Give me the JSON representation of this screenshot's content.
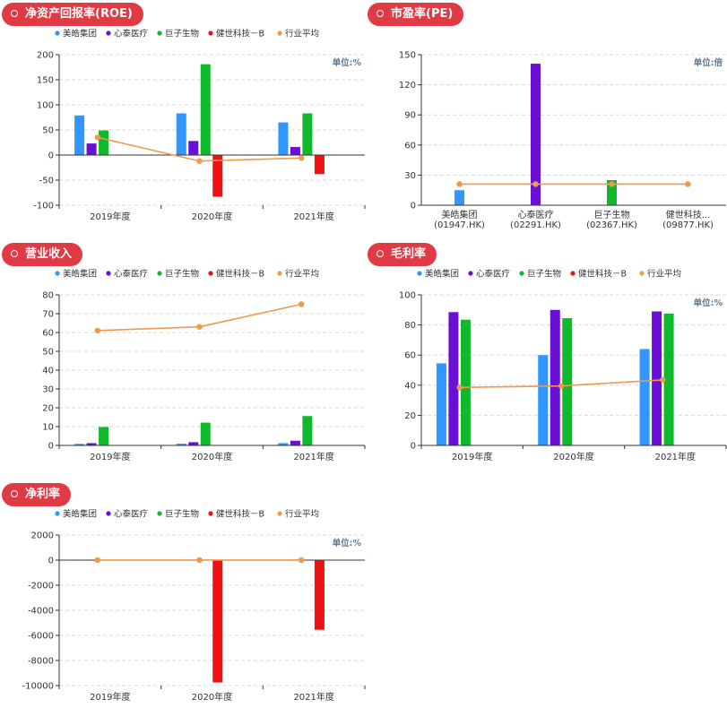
{
  "colors": {
    "title_bg": "#e03a45",
    "series": [
      "#2f97ff",
      "#6a0fd6",
      "#10b92c",
      "#ee1111",
      "#ee9a4d"
    ],
    "axis": "#333333",
    "grid": "#d9d9d9",
    "unit_text": "#5f7893"
  },
  "legend_labels": [
    "美皓集团",
    "心泰医疗",
    "巨子生物",
    "健世科技－B",
    "行业平均"
  ],
  "chart_data": [
    {
      "id": "roe",
      "title": "净资产回报率(ROE)",
      "unit": "单位:%",
      "type": "bar+line",
      "legend": true,
      "categories": [
        "2019年度",
        "2020年度",
        "2021年度"
      ],
      "ylim": [
        -100,
        200
      ],
      "yticks": [
        -100,
        -50,
        0,
        50,
        100,
        150,
        200
      ],
      "series": [
        {
          "name": "美皓集团",
          "type": "bar",
          "values": [
            79,
            83,
            65
          ]
        },
        {
          "name": "心泰医疗",
          "type": "bar",
          "values": [
            23,
            28,
            16
          ]
        },
        {
          "name": "巨子生物",
          "type": "bar",
          "values": [
            49,
            181,
            83
          ]
        },
        {
          "name": "健世科技－B",
          "type": "bar",
          "values": [
            null,
            -83,
            -38
          ]
        },
        {
          "name": "行业平均",
          "type": "line",
          "values": [
            35,
            -12,
            -6
          ]
        }
      ]
    },
    {
      "id": "pe",
      "title": "市盈率(PE)",
      "unit": "单位:倍",
      "type": "bar+line",
      "legend": false,
      "categories": [
        "美皓集团\n(01947.HK)",
        "心泰医疗\n(02291.HK)",
        "巨子生物\n(02367.HK)",
        "健世科技...\n(09877.HK)"
      ],
      "ylim": [
        0,
        150
      ],
      "yticks": [
        0,
        30,
        60,
        90,
        120,
        150
      ],
      "bar_values": [
        15,
        141,
        25,
        null
      ],
      "bar_colors": [
        "#2f97ff",
        "#6a0fd6",
        "#10b92c",
        "#ee1111"
      ],
      "line_values": [
        21,
        21,
        21,
        21
      ]
    },
    {
      "id": "revenue",
      "title": "营业收入",
      "unit": "",
      "type": "bar+line",
      "legend": true,
      "categories": [
        "2019年度",
        "2020年度",
        "2021年度"
      ],
      "ylim": [
        0,
        80
      ],
      "yticks": [
        0,
        10,
        20,
        30,
        40,
        50,
        60,
        70,
        80
      ],
      "series": [
        {
          "name": "美皓集团",
          "type": "bar",
          "values": [
            0.8,
            0.9,
            1.2
          ]
        },
        {
          "name": "心泰医疗",
          "type": "bar",
          "values": [
            1.2,
            1.7,
            2.5
          ]
        },
        {
          "name": "巨子生物",
          "type": "bar",
          "values": [
            9.8,
            12.1,
            15.6
          ]
        },
        {
          "name": "健世科技－B",
          "type": "bar",
          "values": [
            null,
            null,
            null
          ]
        },
        {
          "name": "行业平均",
          "type": "line",
          "values": [
            61,
            63,
            75
          ]
        }
      ]
    },
    {
      "id": "gross_margin",
      "title": "毛利率",
      "unit": "单位:%",
      "type": "bar+line",
      "legend": true,
      "categories": [
        "2019年度",
        "2020年度",
        "2021年度"
      ],
      "ylim": [
        0,
        100
      ],
      "yticks": [
        0,
        20,
        40,
        60,
        80,
        100
      ],
      "series": [
        {
          "name": "美皓集团",
          "type": "bar",
          "values": [
            54.5,
            60,
            64
          ]
        },
        {
          "name": "心泰医疗",
          "type": "bar",
          "values": [
            88.5,
            90,
            89
          ]
        },
        {
          "name": "巨子生物",
          "type": "bar",
          "values": [
            83.5,
            84.5,
            87.5
          ]
        },
        {
          "name": "健世科技－B",
          "type": "bar",
          "values": [
            null,
            null,
            null
          ]
        },
        {
          "name": "行业平均",
          "type": "line",
          "values": [
            38.5,
            39.5,
            43.5
          ]
        }
      ]
    },
    {
      "id": "net_margin",
      "title": "净利率",
      "unit": "单位:%",
      "type": "bar+line",
      "legend": true,
      "categories": [
        "2019年度",
        "2020年度",
        "2021年度"
      ],
      "ylim": [
        -10000,
        2000
      ],
      "yticks": [
        -10000,
        -8000,
        -6000,
        -4000,
        -2000,
        0,
        2000
      ],
      "series": [
        {
          "name": "美皓集团",
          "type": "bar",
          "values": [
            20,
            22,
            25
          ]
        },
        {
          "name": "心泰医疗",
          "type": "bar",
          "values": [
            40,
            42,
            45
          ]
        },
        {
          "name": "巨子生物",
          "type": "bar",
          "values": [
            30,
            32,
            35
          ]
        },
        {
          "name": "健世科技－B",
          "type": "bar",
          "values": [
            null,
            -9750,
            -5550
          ]
        },
        {
          "name": "行业平均",
          "type": "line",
          "values": [
            5,
            5,
            5
          ]
        }
      ]
    }
  ]
}
